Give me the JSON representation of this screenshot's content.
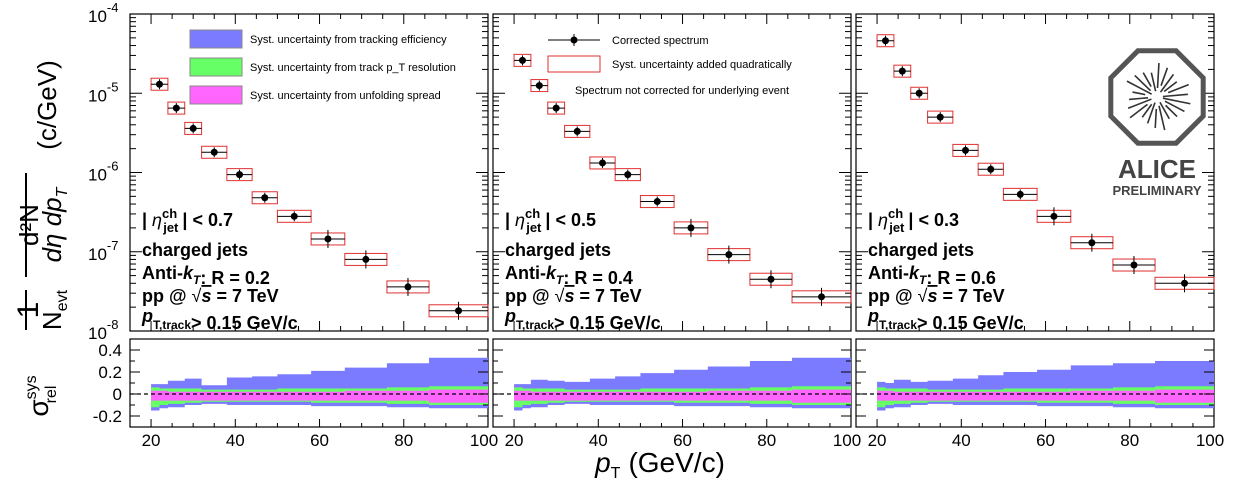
{
  "chart_data": {
    "type": "scatter",
    "y_axis": {
      "label_prefix": "1",
      "label_numerator": "d²N",
      "label_denominator": "N",
      "label_denominator_sub": "evt",
      "label_denominator_rest": "dη dp",
      "label_denominator_rest_sub": "T",
      "unit": "(c/GeV)",
      "scale": "log",
      "ylim": [
        1e-08,
        0.0001
      ],
      "tick_labels": [
        {
          "mantissa": "10",
          "exp": "-8",
          "value": 1e-08
        },
        {
          "mantissa": "10",
          "exp": "-7",
          "value": 1e-07
        },
        {
          "mantissa": "10",
          "exp": "-6",
          "value": 1e-06
        },
        {
          "mantissa": "10",
          "exp": "-5",
          "value": 1e-05
        },
        {
          "mantissa": "10",
          "exp": "-4",
          "value": 0.0001
        }
      ]
    },
    "ratio_axis": {
      "label": "σ",
      "label_sup": "sys",
      "label_sub": "rel",
      "ylim": [
        -0.3,
        0.5
      ],
      "ticks": [
        {
          "label": "0.4",
          "value": 0.4
        },
        {
          "label": "0.2",
          "value": 0.2
        },
        {
          "label": "0",
          "value": 0
        },
        {
          "label": "-0.2",
          "value": -0.2
        }
      ]
    },
    "x_axis": {
      "label": "p",
      "label_sub": "T",
      "unit": "(GeV/c)",
      "xlim": [
        15,
        100
      ],
      "ticks": [
        {
          "label": "20",
          "value": 20
        },
        {
          "label": "40",
          "value": 40
        },
        {
          "label": "60",
          "value": 60
        },
        {
          "label": "80",
          "value": 80
        },
        {
          "label": "100",
          "value": 100
        }
      ]
    },
    "legend_left": [
      {
        "label": "Syst. uncertainty from tracking efficiency",
        "color": "#7b7bff"
      },
      {
        "label": "Syst. uncertainty from track p_T resolution",
        "color": "#66ff66"
      },
      {
        "label": "Syst. uncertainty from unfolding spread",
        "color": "#ff66ff"
      }
    ],
    "legend_middle": [
      {
        "label": "Corrected spectrum"
      },
      {
        "label": "Syst. uncertainty added quadratically"
      },
      {
        "label": "Spectrum not corrected for underlying event"
      }
    ],
    "logo": {
      "name": "ALICE",
      "subtitle": "PRELIMINARY"
    },
    "panels": [
      {
        "eta_line": "| ηjet^ch | < 0.7",
        "eta_value": "< 0.7",
        "line2": "charged jets",
        "anti_kt": "Anti-kT: R = 0.2",
        "r_value": ": R = 0.2",
        "pp_line": "pp @ √s = 7 TeV",
        "ptcut": "> 0.15 GeV/c",
        "points": [
          {
            "x": 22,
            "xlo": 20,
            "xhi": 24,
            "y": 1.3e-05
          },
          {
            "x": 26,
            "xlo": 24,
            "xhi": 28,
            "y": 6.5e-06
          },
          {
            "x": 30,
            "xlo": 28,
            "xhi": 32,
            "y": 3.6e-06
          },
          {
            "x": 35,
            "xlo": 32,
            "xhi": 38,
            "y": 1.8e-06
          },
          {
            "x": 41,
            "xlo": 38,
            "xhi": 44,
            "y": 9.4e-07
          },
          {
            "x": 47,
            "xlo": 44,
            "xhi": 50,
            "y": 4.8e-07
          },
          {
            "x": 54,
            "xlo": 50,
            "xhi": 58,
            "y": 2.8e-07
          },
          {
            "x": 62,
            "xlo": 58,
            "xhi": 66,
            "y": 1.45e-07
          },
          {
            "x": 71,
            "xlo": 66,
            "xhi": 76,
            "y": 8e-08
          },
          {
            "x": 81,
            "xlo": 76,
            "xhi": 86,
            "y": 3.6e-08
          },
          {
            "x": 93,
            "xlo": 86,
            "xhi": 100,
            "y": 1.8e-08
          }
        ],
        "bands": {
          "x": [
            20,
            22,
            24,
            28,
            32,
            38,
            44,
            50,
            58,
            66,
            76,
            86,
            100
          ],
          "blue": [
            0.09,
            0.09,
            0.12,
            0.14,
            0.08,
            0.15,
            0.16,
            0.18,
            0.21,
            0.24,
            0.28,
            0.33,
            0.36
          ],
          "green": [
            0.06,
            0.05,
            0.05,
            0.05,
            0.04,
            0.04,
            0.04,
            0.05,
            0.05,
            0.05,
            0.06,
            0.07,
            0.08
          ],
          "magenta": [
            0.03,
            0.03,
            0.02,
            0.02,
            0.02,
            0.02,
            0.02,
            0.02,
            0.02,
            0.03,
            0.03,
            0.04,
            0.05
          ],
          "green_low": [
            -0.12,
            -0.1,
            -0.09,
            -0.08,
            -0.07,
            -0.07,
            -0.07,
            -0.07,
            -0.08,
            -0.08,
            -0.09,
            -0.1,
            -0.11
          ],
          "blue_low": [
            -0.15,
            -0.13,
            -0.12,
            -0.1,
            -0.09,
            -0.1,
            -0.1,
            -0.1,
            -0.11,
            -0.11,
            -0.12,
            -0.13,
            -0.15
          ]
        }
      },
      {
        "eta_line": "| ηjet^ch | < 0.5",
        "eta_value": "< 0.5",
        "line2": "charged jets",
        "anti_kt": "Anti-kT: R = 0.4",
        "r_value": ": R = 0.4",
        "pp_line": "pp @ √s = 7 TeV",
        "ptcut": "> 0.15 GeV/c",
        "points": [
          {
            "x": 22,
            "xlo": 20,
            "xhi": 24,
            "y": 2.6e-05
          },
          {
            "x": 26,
            "xlo": 24,
            "xhi": 28,
            "y": 1.25e-05
          },
          {
            "x": 30,
            "xlo": 28,
            "xhi": 32,
            "y": 6.5e-06
          },
          {
            "x": 35,
            "xlo": 32,
            "xhi": 38,
            "y": 3.3e-06
          },
          {
            "x": 41,
            "xlo": 38,
            "xhi": 44,
            "y": 1.32e-06
          },
          {
            "x": 47,
            "xlo": 44,
            "xhi": 50,
            "y": 9.4e-07
          },
          {
            "x": 54,
            "xlo": 50,
            "xhi": 58,
            "y": 4.3e-07
          },
          {
            "x": 62,
            "xlo": 58,
            "xhi": 66,
            "y": 2e-07
          },
          {
            "x": 71,
            "xlo": 66,
            "xhi": 76,
            "y": 9.2e-08
          },
          {
            "x": 81,
            "xlo": 76,
            "xhi": 86,
            "y": 4.5e-08
          },
          {
            "x": 93,
            "xlo": 86,
            "xhi": 100,
            "y": 2.7e-08
          }
        ],
        "bands": {
          "x": [
            20,
            22,
            24,
            28,
            32,
            38,
            44,
            50,
            58,
            66,
            76,
            86,
            100
          ],
          "blue": [
            0.09,
            0.09,
            0.13,
            0.12,
            0.11,
            0.14,
            0.16,
            0.19,
            0.22,
            0.25,
            0.3,
            0.33,
            0.35
          ],
          "green": [
            0.06,
            0.05,
            0.05,
            0.05,
            0.04,
            0.04,
            0.04,
            0.05,
            0.05,
            0.05,
            0.06,
            0.07,
            0.08
          ],
          "magenta": [
            0.03,
            0.03,
            0.02,
            0.02,
            0.02,
            0.02,
            0.02,
            0.02,
            0.02,
            0.03,
            0.03,
            0.04,
            0.05
          ],
          "green_low": [
            -0.12,
            -0.1,
            -0.09,
            -0.08,
            -0.07,
            -0.07,
            -0.07,
            -0.07,
            -0.08,
            -0.08,
            -0.09,
            -0.1,
            -0.11
          ],
          "blue_low": [
            -0.15,
            -0.13,
            -0.12,
            -0.1,
            -0.09,
            -0.1,
            -0.1,
            -0.1,
            -0.11,
            -0.11,
            -0.12,
            -0.13,
            -0.15
          ]
        }
      },
      {
        "eta_line": "| ηjet^ch | < 0.3",
        "eta_value": "< 0.3",
        "line2": "charged jets",
        "anti_kt": "Anti-kT: R = 0.6",
        "r_value": ": R = 0.6",
        "pp_line": "pp @ √s = 7 TeV",
        "ptcut": "> 0.15 GeV/c",
        "points": [
          {
            "x": 22,
            "xlo": 20,
            "xhi": 24,
            "y": 4.6e-05
          },
          {
            "x": 26,
            "xlo": 24,
            "xhi": 28,
            "y": 1.9e-05
          },
          {
            "x": 30,
            "xlo": 28,
            "xhi": 32,
            "y": 1e-05
          },
          {
            "x": 35,
            "xlo": 32,
            "xhi": 38,
            "y": 5e-06
          },
          {
            "x": 41,
            "xlo": 38,
            "xhi": 44,
            "y": 1.9e-06
          },
          {
            "x": 47,
            "xlo": 44,
            "xhi": 50,
            "y": 1.1e-06
          },
          {
            "x": 54,
            "xlo": 50,
            "xhi": 58,
            "y": 5.3e-07
          },
          {
            "x": 62,
            "xlo": 58,
            "xhi": 66,
            "y": 2.8e-07
          },
          {
            "x": 71,
            "xlo": 66,
            "xhi": 76,
            "y": 1.3e-07
          },
          {
            "x": 81,
            "xlo": 76,
            "xhi": 86,
            "y": 6.8e-08
          },
          {
            "x": 93,
            "xlo": 86,
            "xhi": 100,
            "y": 4e-08
          }
        ],
        "bands": {
          "x": [
            20,
            22,
            24,
            28,
            32,
            38,
            44,
            50,
            58,
            66,
            76,
            86,
            100
          ],
          "blue": [
            0.11,
            0.1,
            0.13,
            0.11,
            0.12,
            0.14,
            0.17,
            0.2,
            0.22,
            0.26,
            0.28,
            0.3,
            0.32
          ],
          "green": [
            0.06,
            0.05,
            0.05,
            0.05,
            0.04,
            0.04,
            0.04,
            0.05,
            0.05,
            0.05,
            0.06,
            0.07,
            0.08
          ],
          "magenta": [
            0.03,
            0.03,
            0.02,
            0.02,
            0.02,
            0.02,
            0.02,
            0.02,
            0.02,
            0.03,
            0.03,
            0.04,
            0.05
          ],
          "green_low": [
            -0.12,
            -0.1,
            -0.09,
            -0.08,
            -0.07,
            -0.07,
            -0.07,
            -0.07,
            -0.08,
            -0.08,
            -0.09,
            -0.1,
            -0.11
          ],
          "blue_low": [
            -0.15,
            -0.13,
            -0.12,
            -0.1,
            -0.09,
            -0.1,
            -0.1,
            -0.1,
            -0.11,
            -0.11,
            -0.12,
            -0.13,
            -0.15
          ]
        }
      }
    ]
  }
}
